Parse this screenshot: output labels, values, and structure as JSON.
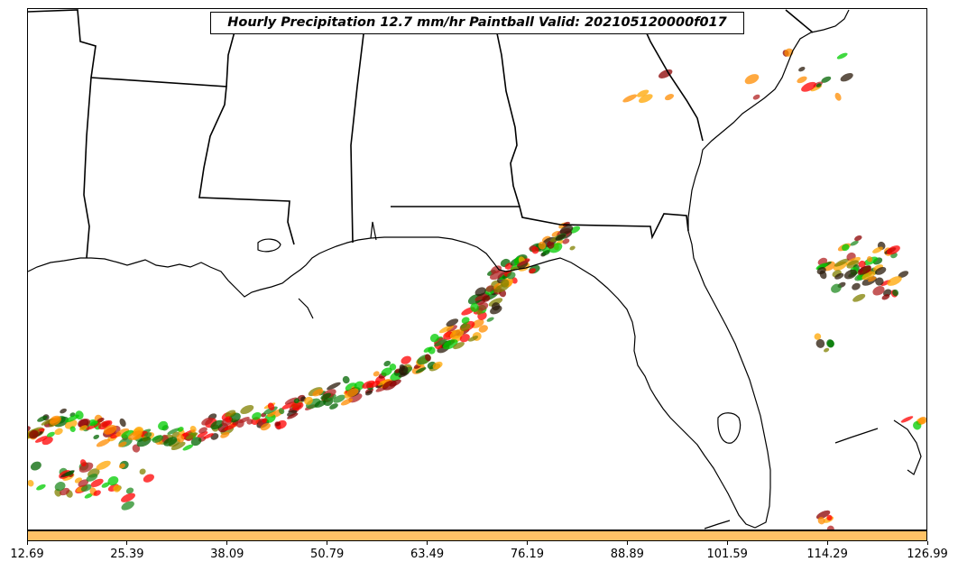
{
  "title": "Hourly Precipitation 12.7 mm/hr Paintball Valid: 202105120000f017",
  "colorbar": {
    "color": "#ffc266",
    "tick_labels": [
      "12.69",
      "25.39",
      "38.09",
      "50.79",
      "63.49",
      "76.19",
      "88.89",
      "101.59",
      "114.29",
      "126.99"
    ]
  },
  "palette": [
    "#ff0000",
    "#ff8c00",
    "#00cc00",
    "#808000",
    "#8b0000",
    "#006400",
    "#ffa500",
    "#228b22",
    "#2a1a0a",
    "#b22222"
  ],
  "map": {
    "region": "Gulf Coast and Southeastern United States",
    "coastline_color": "#000000",
    "ocean_color": "#ffffff"
  }
}
